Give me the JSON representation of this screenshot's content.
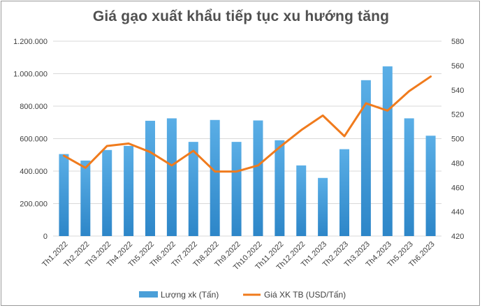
{
  "chart_data": {
    "type": "bar",
    "title": "Giá gạo xuất khẩu tiếp tục xu hướng tăng",
    "categories": [
      "Th1.2022",
      "Th2.2022",
      "Th3.2022",
      "Th4.2022",
      "Th5.2022",
      "Th6.2022",
      "Th7.2022",
      "Th8.2022",
      "Th9.2022",
      "Th10.2022",
      "Th11.2022",
      "Th12.2022",
      "Th1.2023",
      "Th2.2023",
      "Th3.2023",
      "Th4.2023",
      "Th5.2023",
      "Th6.2023"
    ],
    "series": [
      {
        "name": "Lượng xk (Tấn)",
        "type": "bar",
        "axis": "left",
        "color": "#4a9fd8",
        "values": [
          505000,
          465000,
          530000,
          555000,
          710000,
          725000,
          580000,
          715000,
          580000,
          712000,
          590000,
          435000,
          358000,
          535000,
          960000,
          1045000,
          725000,
          618000
        ]
      },
      {
        "name": "Giá XK TB (USD/Tấn)",
        "type": "line",
        "axis": "right",
        "color": "#f07b1d",
        "values": [
          486,
          476,
          494,
          496,
          489,
          478,
          490,
          473,
          473,
          478,
          493,
          507,
          519,
          502,
          529,
          523,
          539,
          551
        ]
      }
    ],
    "ylim_left": [
      0,
      1200000
    ],
    "yticks_left": [
      "0",
      "200.000",
      "400.000",
      "600.000",
      "800.000",
      "1.000.000",
      "1.200.000"
    ],
    "ylim_right": [
      420,
      580
    ],
    "yticks_right": [
      "420",
      "440",
      "460",
      "480",
      "500",
      "520",
      "540",
      "560",
      "580"
    ],
    "grid": true,
    "legend_position": "bottom"
  }
}
